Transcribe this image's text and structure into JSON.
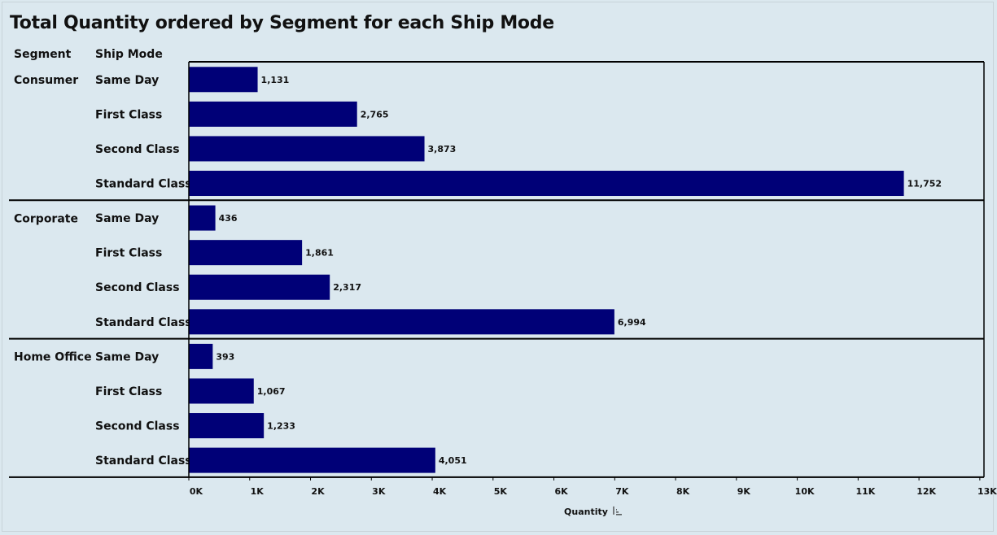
{
  "chart_data": {
    "type": "bar",
    "orientation": "horizontal",
    "title": "Total Quantity ordered by Segment for each Ship Mode",
    "row_headers": [
      "Segment",
      "Ship Mode"
    ],
    "xlabel": "Quantity",
    "xlim": [
      0,
      13000
    ],
    "x_ticks": [
      {
        "value": 0,
        "label": "0K"
      },
      {
        "value": 1000,
        "label": "1K"
      },
      {
        "value": 2000,
        "label": "2K"
      },
      {
        "value": 3000,
        "label": "3K"
      },
      {
        "value": 4000,
        "label": "4K"
      },
      {
        "value": 5000,
        "label": "5K"
      },
      {
        "value": 6000,
        "label": "6K"
      },
      {
        "value": 7000,
        "label": "7K"
      },
      {
        "value": 8000,
        "label": "8K"
      },
      {
        "value": 9000,
        "label": "9K"
      },
      {
        "value": 10000,
        "label": "10K"
      },
      {
        "value": 11000,
        "label": "11K"
      },
      {
        "value": 12000,
        "label": "12K"
      },
      {
        "value": 13000,
        "label": "13K"
      }
    ],
    "bar_color": "#000077",
    "groups": [
      {
        "segment": "Consumer",
        "rows": [
          {
            "ship_mode": "Same Day",
            "value": 1131,
            "label": "1,131"
          },
          {
            "ship_mode": "First Class",
            "value": 2765,
            "label": "2,765"
          },
          {
            "ship_mode": "Second Class",
            "value": 3873,
            "label": "3,873"
          },
          {
            "ship_mode": "Standard Class",
            "value": 11752,
            "label": "11,752"
          }
        ]
      },
      {
        "segment": "Corporate",
        "rows": [
          {
            "ship_mode": "Same Day",
            "value": 436,
            "label": "436"
          },
          {
            "ship_mode": "First Class",
            "value": 1861,
            "label": "1,861"
          },
          {
            "ship_mode": "Second Class",
            "value": 2317,
            "label": "2,317"
          },
          {
            "ship_mode": "Standard Class",
            "value": 6994,
            "label": "6,994"
          }
        ]
      },
      {
        "segment": "Home Office",
        "rows": [
          {
            "ship_mode": "Same Day",
            "value": 393,
            "label": "393"
          },
          {
            "ship_mode": "First Class",
            "value": 1067,
            "label": "1,067"
          },
          {
            "ship_mode": "Second Class",
            "value": 1233,
            "label": "1,233"
          },
          {
            "ship_mode": "Standard Class",
            "value": 4051,
            "label": "4,051"
          }
        ]
      }
    ]
  }
}
